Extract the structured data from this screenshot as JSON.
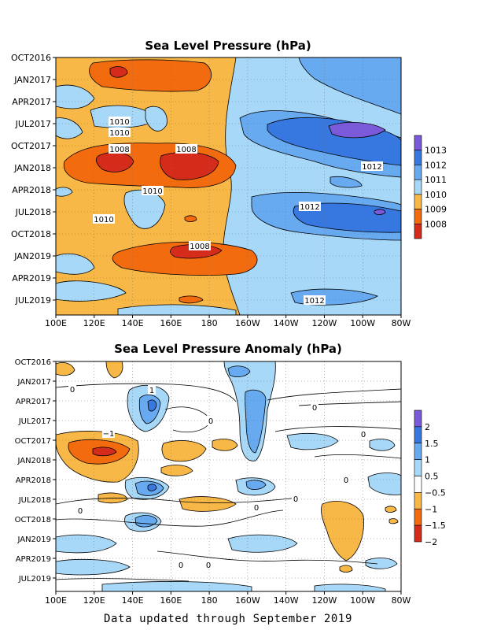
{
  "footer": "Data updated through September 2019",
  "chart_data": [
    {
      "type": "heatmap",
      "title": "Sea Level Pressure (hPa)",
      "x_ticks": [
        "100E",
        "120E",
        "140E",
        "160E",
        "180",
        "160W",
        "140W",
        "120W",
        "100W",
        "80W"
      ],
      "y_ticks": [
        "OCT2016",
        "JAN2017",
        "APR2017",
        "JUL2017",
        "OCT2017",
        "JAN2018",
        "APR2018",
        "JUL2018",
        "OCT2018",
        "JAN2019",
        "APR2019",
        "JUL2019"
      ],
      "legend": {
        "labels": [
          "1008",
          "1009",
          "1010",
          "1011",
          "1012",
          "1013"
        ],
        "colors": [
          "#d42b1a",
          "#f26b0f",
          "#f8b848",
          "#a8d8f8",
          "#68aaf0",
          "#3778e0",
          "#7a5ad8"
        ]
      },
      "contour_labels": [
        "1010",
        "1010",
        "1008",
        "1008",
        "1012",
        "1010",
        "1012",
        "1010",
        "1008",
        "1012"
      ],
      "grid": true
    },
    {
      "type": "heatmap",
      "title": "Sea Level Pressure Anomaly (hPa)",
      "x_ticks": [
        "100E",
        "120E",
        "140E",
        "160E",
        "180",
        "160W",
        "140W",
        "120W",
        "100W",
        "80W"
      ],
      "y_ticks": [
        "OCT2016",
        "JAN2017",
        "APR2017",
        "JUL2017",
        "OCT2017",
        "JAN2018",
        "APR2018",
        "JUL2018",
        "OCT2018",
        "JAN2019",
        "APR2019",
        "JUL2019"
      ],
      "legend": {
        "labels": [
          "2",
          "1.5",
          "1",
          "0.5",
          "−0.5",
          "−1",
          "−1.5",
          "−2"
        ],
        "colors": [
          "#7a5ad8",
          "#3778e0",
          "#68aaf0",
          "#a8d8f8",
          "#ffffff",
          "#f8b848",
          "#f26b0f",
          "#d42b1a"
        ]
      },
      "contour_labels": [
        "0",
        "1",
        "0",
        "0",
        "−1",
        "0",
        "0",
        "0",
        "0",
        "0",
        "0",
        "0"
      ],
      "grid": true
    }
  ]
}
